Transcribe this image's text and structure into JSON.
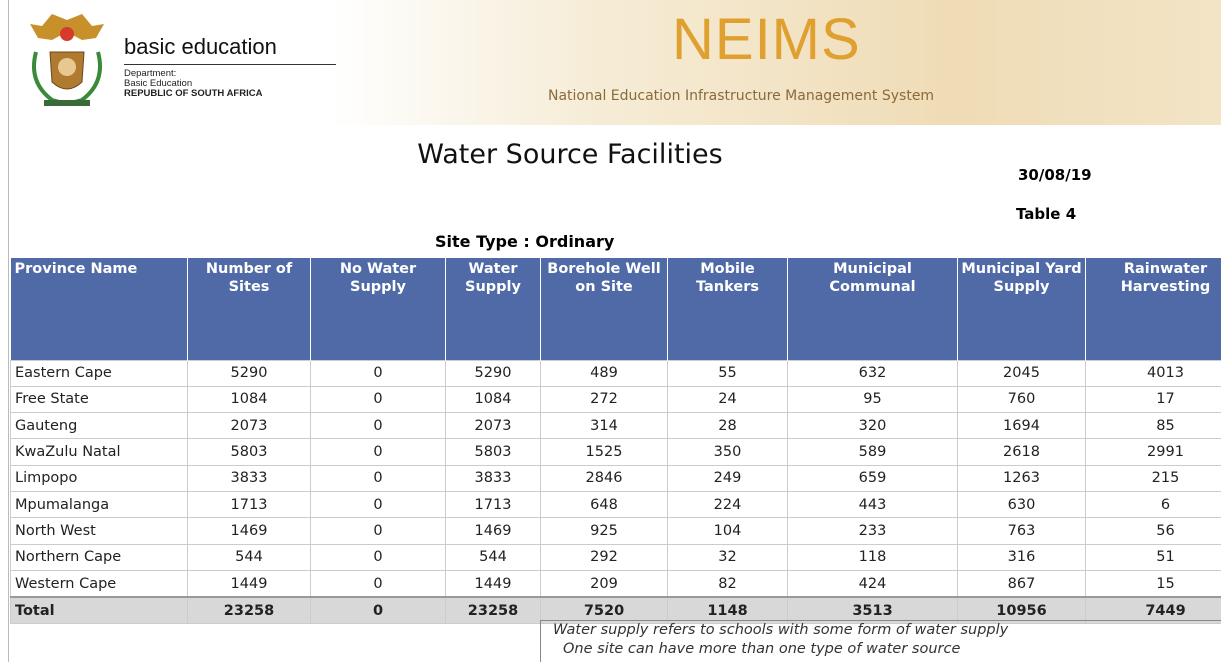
{
  "header": {
    "dept_title": "basic education",
    "dept_lines": [
      "Department:",
      "Basic Education",
      "REPUBLIC OF SOUTH AFRICA"
    ],
    "system": "NEIMS",
    "system_full": "National Education Infrastructure Management System"
  },
  "title": "Water Source Facilities",
  "date": "30/08/19",
  "table_no": "Table 4",
  "site_type": "Site Type : Ordinary",
  "table": {
    "columns": [
      "Province Name",
      "Number of Sites",
      "No Water Supply",
      "Water Supply",
      "Borehole Well on Site",
      "Mobile Tankers",
      "Municipal Communal",
      "Municipal Yard Supply",
      "Rainwater Harvesting"
    ],
    "rows": [
      [
        "Eastern Cape",
        5290,
        0,
        5290,
        489,
        55,
        632,
        2045,
        4013
      ],
      [
        "Free State",
        1084,
        0,
        1084,
        272,
        24,
        95,
        760,
        17
      ],
      [
        "Gauteng",
        2073,
        0,
        2073,
        314,
        28,
        320,
        1694,
        85
      ],
      [
        "KwaZulu Natal",
        5803,
        0,
        5803,
        1525,
        350,
        589,
        2618,
        2991
      ],
      [
        "Limpopo",
        3833,
        0,
        3833,
        2846,
        249,
        659,
        1263,
        215
      ],
      [
        "Mpumalanga",
        1713,
        0,
        1713,
        648,
        224,
        443,
        630,
        6
      ],
      [
        "North West",
        1469,
        0,
        1469,
        925,
        104,
        233,
        763,
        56
      ],
      [
        "Northern Cape",
        544,
        0,
        544,
        292,
        32,
        118,
        316,
        51
      ],
      [
        "Western Cape",
        1449,
        0,
        1449,
        209,
        82,
        424,
        867,
        15
      ]
    ],
    "total": [
      "Total",
      23258,
      0,
      23258,
      7520,
      1148,
      3513,
      10956,
      7449
    ]
  },
  "notes": [
    "Water supply refers to schools with some form of water supply",
    "One site can have more than one type of water source"
  ]
}
